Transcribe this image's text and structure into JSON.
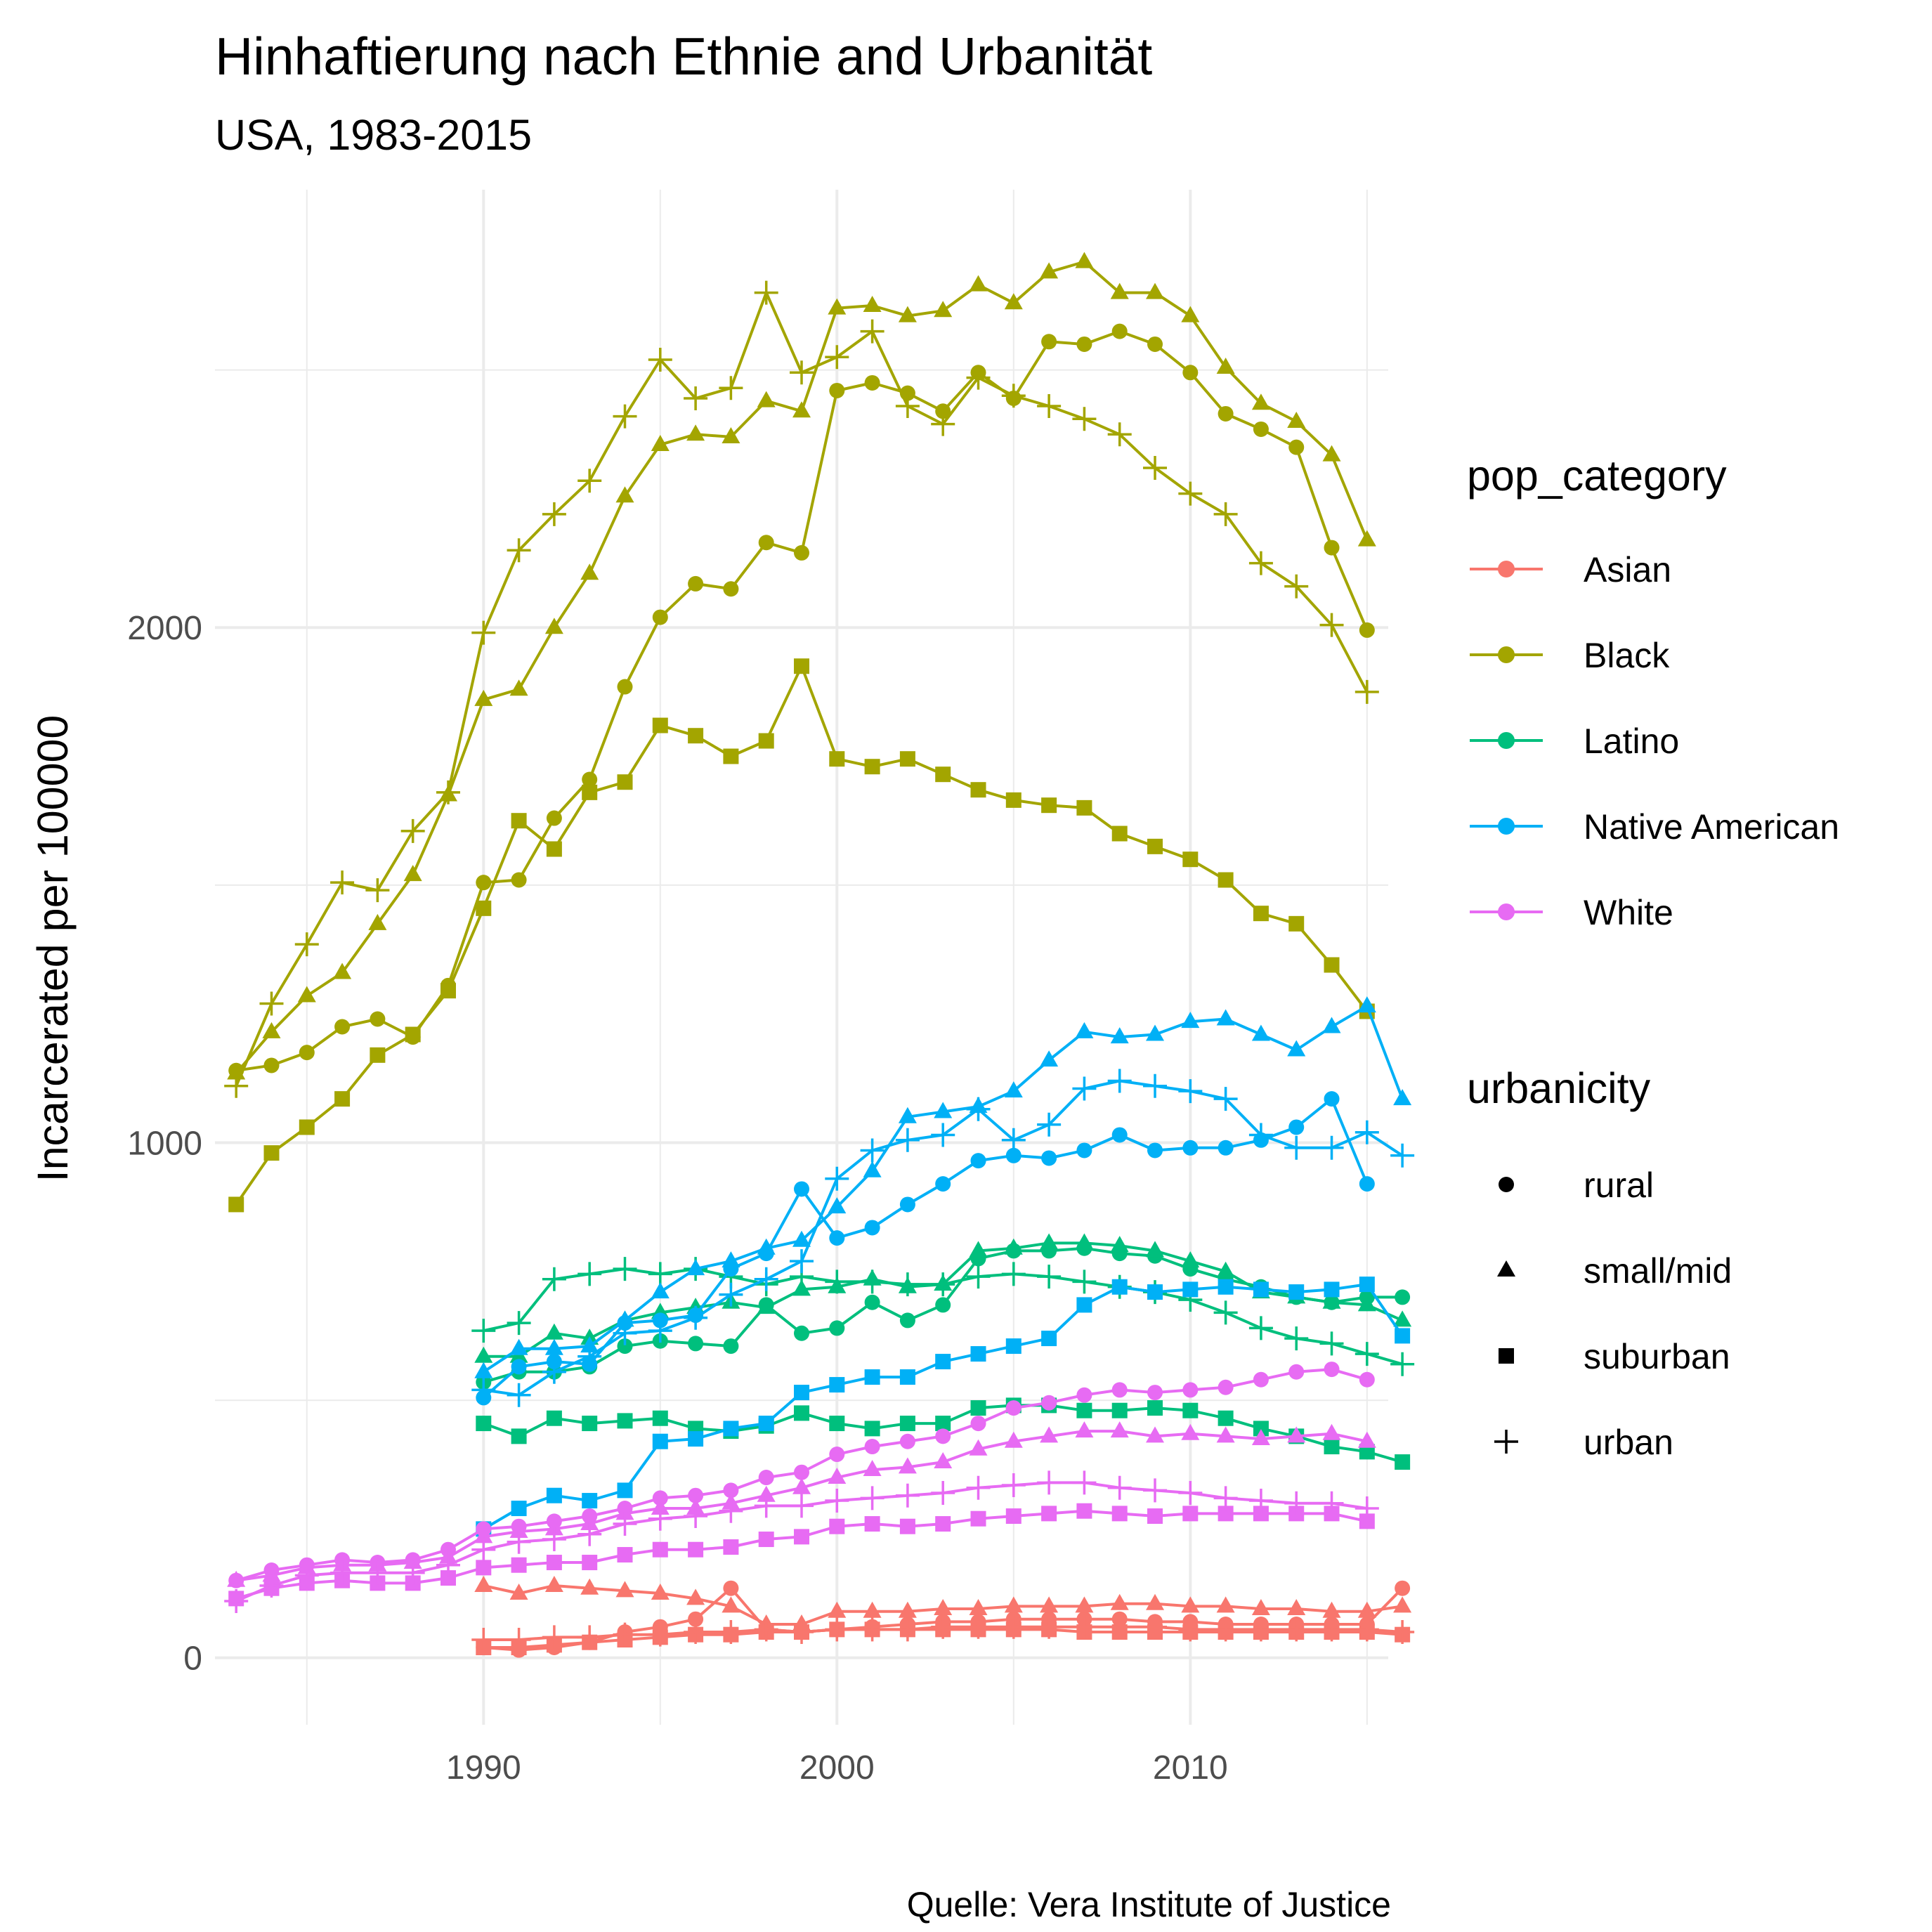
{
  "chart_data": {
    "type": "line",
    "title": "Hinhaftierung nach Ethnie and Urbanität",
    "subtitle": "USA, 1983-2015",
    "caption": "Quelle: Vera Institute of Justice",
    "xlabel": "",
    "ylabel": "Incarcerated per 100000",
    "xlim": [
      1982.4,
      2015.6
    ],
    "ylim": [
      -130,
      2850
    ],
    "x_ticks": [
      1990,
      2000,
      2010
    ],
    "y_ticks": [
      0,
      1000,
      2000
    ],
    "grid": true,
    "legend_placement": "right",
    "colors": {
      "Asian": "#F8766D",
      "Black": "#A3A500",
      "Latino": "#00BF7D",
      "Native American": "#00B0F6",
      "White": "#E76BF3"
    },
    "legends": {
      "pop_category": {
        "title": "pop_category",
        "entries": [
          "Asian",
          "Black",
          "Latino",
          "Native American",
          "White"
        ]
      },
      "urbanicity": {
        "title": "urbanicity",
        "entries": [
          {
            "label": "rural",
            "shape": "circle"
          },
          {
            "label": "small/mid",
            "shape": "triangle"
          },
          {
            "label": "suburban",
            "shape": "square"
          },
          {
            "label": "urban",
            "shape": "plus"
          }
        ]
      }
    },
    "series": [
      {
        "category": "Black",
        "urbanicity": "rural",
        "start_year": 1983,
        "values": [
          1140,
          1150,
          1175,
          1225,
          1240,
          1205,
          1305,
          1505,
          1510,
          1630,
          1705,
          1885,
          2020,
          2085,
          2075,
          2165,
          2145,
          2460,
          2475,
          2455,
          2420,
          2495,
          2445,
          2555,
          2550,
          2575,
          2550,
          2495,
          2415,
          2385,
          2350,
          2155,
          1995
        ]
      },
      {
        "category": "Black",
        "urbanicity": "small/mid",
        "start_year": 1983,
        "values": [
          1135,
          1215,
          1285,
          1330,
          1425,
          1520,
          1675,
          1860,
          1880,
          2000,
          2105,
          2255,
          2355,
          2375,
          2370,
          2440,
          2420,
          2620,
          2625,
          2605,
          2615,
          2665,
          2630,
          2690,
          2710,
          2650,
          2650,
          2605,
          2505,
          2435,
          2400,
          2335,
          2170
        ]
      },
      {
        "category": "Black",
        "urbanicity": "suburban",
        "start_year": 1983,
        "values": [
          880,
          980,
          1030,
          1085,
          1170,
          1210,
          1295,
          1455,
          1625,
          1570,
          1680,
          1700,
          1810,
          1790,
          1750,
          1780,
          1925,
          1745,
          1730,
          1745,
          1715,
          1685,
          1665,
          1655,
          1650,
          1600,
          1575,
          1550,
          1510,
          1445,
          1425,
          1345,
          1255
        ]
      },
      {
        "category": "Black",
        "urbanicity": "urban",
        "start_year": 1983,
        "values": [
          1110,
          1270,
          1385,
          1505,
          1490,
          1605,
          1680,
          1990,
          2150,
          2220,
          2285,
          2410,
          2520,
          2445,
          2465,
          2650,
          2495,
          2525,
          2575,
          2430,
          2395,
          2485,
          2450,
          2430,
          2405,
          2375,
          2310,
          2260,
          2220,
          2125,
          2080,
          2005,
          1875
        ]
      },
      {
        "category": "Latino",
        "urbanicity": "rural",
        "start_year": 1990,
        "values": [
          535,
          555,
          555,
          565,
          605,
          615,
          610,
          605,
          685,
          630,
          640,
          690,
          655,
          685,
          775,
          790,
          790,
          795,
          785,
          780,
          755,
          735,
          720,
          700,
          690,
          700,
          700
        ]
      },
      {
        "category": "Latino",
        "urbanicity": "small/mid",
        "start_year": 1990,
        "values": [
          585,
          585,
          630,
          620,
          655,
          670,
          680,
          690,
          680,
          715,
          720,
          735,
          720,
          725,
          790,
          795,
          805,
          805,
          800,
          790,
          770,
          750,
          710,
          700,
          690,
          685,
          655
        ]
      },
      {
        "category": "Latino",
        "urbanicity": "suburban",
        "start_year": 1990,
        "values": [
          455,
          430,
          465,
          455,
          460,
          465,
          445,
          440,
          450,
          475,
          455,
          445,
          455,
          455,
          485,
          490,
          490,
          480,
          480,
          485,
          480,
          465,
          445,
          430,
          410,
          400,
          380
        ]
      },
      {
        "category": "Latino",
        "urbanicity": "urban",
        "start_year": 1990,
        "values": [
          635,
          650,
          735,
          745,
          755,
          745,
          755,
          740,
          725,
          740,
          730,
          730,
          725,
          725,
          740,
          745,
          740,
          730,
          720,
          710,
          695,
          670,
          640,
          620,
          610,
          590,
          570
        ]
      },
      {
        "category": "Native American",
        "urbanicity": "rural",
        "start_year": 1990,
        "values": [
          505,
          565,
          575,
          570,
          650,
          655,
          665,
          755,
          785,
          910,
          815,
          835,
          880,
          920,
          965,
          975,
          970,
          985,
          1015,
          985,
          990,
          990,
          1005,
          1030,
          1085,
          920
        ]
      },
      {
        "category": "Native American",
        "urbanicity": "small/mid",
        "start_year": 1990,
        "values": [
          555,
          600,
          600,
          605,
          655,
          710,
          755,
          770,
          795,
          810,
          875,
          945,
          1050,
          1060,
          1070,
          1100,
          1160,
          1215,
          1205,
          1210,
          1235,
          1240,
          1210,
          1180,
          1225,
          1265,
          1085
        ]
      },
      {
        "category": "Native American",
        "urbanicity": "suburban",
        "start_year": 1990,
        "values": [
          250,
          290,
          315,
          305,
          325,
          420,
          425,
          445,
          455,
          515,
          530,
          545,
          545,
          575,
          590,
          605,
          620,
          685,
          720,
          710,
          715,
          720,
          715,
          710,
          715,
          725,
          625
        ]
      },
      {
        "category": "Native American",
        "urbanicity": "urban",
        "start_year": 1990,
        "values": [
          520,
          510,
          555,
          585,
          630,
          635,
          660,
          705,
          735,
          770,
          930,
          985,
          1005,
          1015,
          1065,
          1005,
          1035,
          1105,
          1120,
          1110,
          1100,
          1085,
          1015,
          990,
          990,
          1020,
          975
        ]
      },
      {
        "category": "White",
        "urbanicity": "rural",
        "start_year": 1983,
        "values": [
          150,
          170,
          180,
          190,
          185,
          190,
          210,
          250,
          255,
          265,
          275,
          290,
          310,
          315,
          325,
          350,
          360,
          395,
          410,
          420,
          430,
          455,
          485,
          495,
          510,
          520,
          515,
          520,
          525,
          540,
          555,
          560,
          540
        ]
      },
      {
        "category": "White",
        "urbanicity": "small/mid",
        "start_year": 1983,
        "values": [
          150,
          160,
          175,
          180,
          180,
          185,
          195,
          235,
          245,
          250,
          260,
          280,
          290,
          290,
          300,
          315,
          330,
          350,
          365,
          370,
          380,
          405,
          420,
          430,
          440,
          440,
          430,
          435,
          430,
          425,
          430,
          435,
          420
        ]
      },
      {
        "category": "White",
        "urbanicity": "suburban",
        "start_year": 1983,
        "values": [
          115,
          135,
          145,
          150,
          145,
          145,
          155,
          175,
          180,
          185,
          185,
          200,
          210,
          210,
          215,
          230,
          235,
          255,
          260,
          255,
          260,
          270,
          275,
          280,
          285,
          280,
          275,
          280,
          280,
          280,
          280,
          280,
          265
        ]
      },
      {
        "category": "White",
        "urbanicity": "urban",
        "start_year": 1983,
        "values": [
          110,
          140,
          160,
          165,
          165,
          165,
          180,
          210,
          225,
          230,
          240,
          260,
          270,
          275,
          285,
          295,
          295,
          305,
          310,
          315,
          320,
          330,
          335,
          340,
          340,
          330,
          325,
          320,
          310,
          305,
          300,
          300,
          290
        ]
      },
      {
        "category": "Asian",
        "urbanicity": "rural",
        "start_year": 1990,
        "values": [
          20,
          15,
          20,
          30,
          50,
          60,
          75,
          135,
          55,
          50,
          55,
          60,
          65,
          70,
          70,
          75,
          75,
          75,
          75,
          70,
          70,
          65,
          65,
          65,
          65,
          65,
          135
        ]
      },
      {
        "category": "Asian",
        "urbanicity": "small/mid",
        "start_year": 1990,
        "values": [
          140,
          125,
          140,
          135,
          130,
          125,
          115,
          100,
          65,
          65,
          90,
          90,
          90,
          95,
          95,
          100,
          100,
          100,
          105,
          105,
          100,
          100,
          95,
          95,
          90,
          90,
          100
        ]
      },
      {
        "category": "Asian",
        "urbanicity": "suburban",
        "start_year": 1990,
        "values": [
          20,
          20,
          25,
          30,
          35,
          40,
          45,
          45,
          50,
          50,
          55,
          55,
          55,
          55,
          55,
          55,
          55,
          50,
          50,
          50,
          50,
          50,
          50,
          50,
          50,
          50,
          45
        ]
      },
      {
        "category": "Asian",
        "urbanicity": "urban",
        "start_year": 1990,
        "values": [
          35,
          35,
          40,
          40,
          45,
          45,
          50,
          50,
          55,
          50,
          55,
          55,
          55,
          60,
          60,
          60,
          60,
          60,
          60,
          60,
          55,
          55,
          55,
          55,
          55,
          55,
          50
        ]
      }
    ]
  }
}
